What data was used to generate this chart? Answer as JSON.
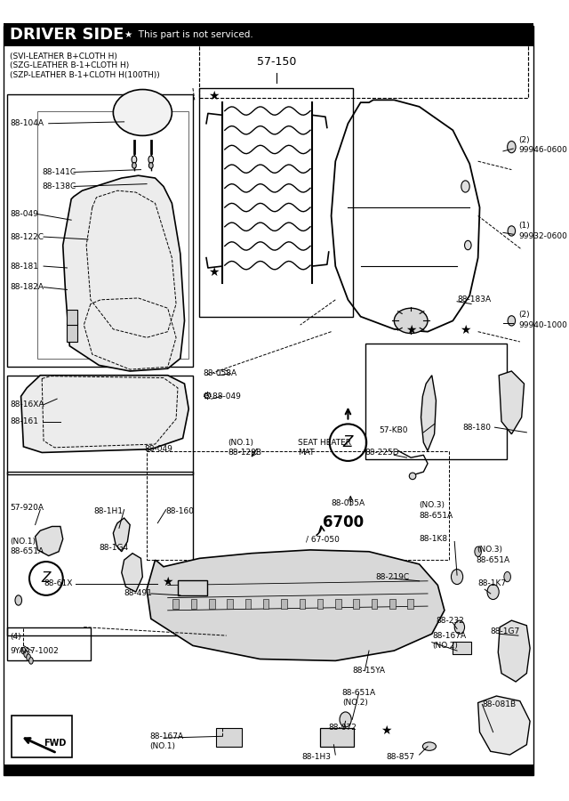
{
  "title": "DRIVER SIDE",
  "star_note": "★  This part is not serviced.",
  "subtitle_lines": [
    "(SVI-LEATHER B+CLOTH H)",
    "(SZG-LEATHER B-1+CLOTH H)",
    "(SZP-LEATHER B-1+CLOTH H(100TH))"
  ],
  "part_number_main": "57-150",
  "bg_color": "#ffffff",
  "fig_width": 6.4,
  "fig_height": 9.0,
  "dpi": 100,
  "header_bar_color": "#000000",
  "header_text_color": "#ffffff",
  "label_fontsize": 6.5,
  "title_fontsize": 13,
  "note_fontsize": 7.5
}
